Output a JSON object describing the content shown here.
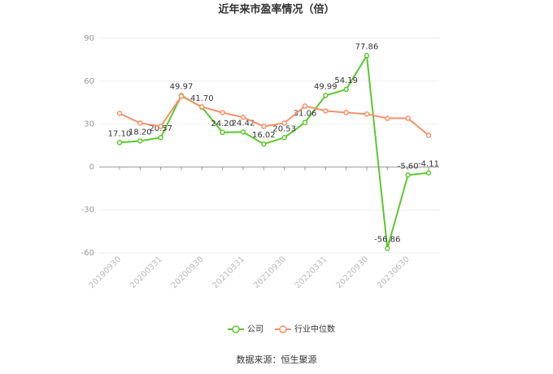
{
  "chart_data": {
    "type": "line",
    "title": "近年来市盈率情况（倍）",
    "source": "数据来源：恒生聚源",
    "categories": [
      "20190930",
      null,
      "20200331",
      null,
      "20200930",
      null,
      "20210331",
      null,
      "20210930",
      null,
      "20220331",
      null,
      "20220930",
      null,
      "20230630",
      null
    ],
    "series": [
      {
        "name": "公司",
        "color": "#5cc72e",
        "values": [
          17.1,
          18.2,
          20.57,
          49.97,
          41.7,
          24.2,
          24.42,
          16.02,
          20.53,
          31.06,
          49.99,
          54.19,
          77.86,
          -56.86,
          -5.6,
          -4.11
        ],
        "value_labels": [
          "17.10",
          "18.20",
          "20.57",
          "49.97",
          "41.70",
          "24.20",
          "24.42",
          "16.02",
          "20.53",
          "31.06",
          "49.99",
          "54.19",
          "77.86",
          "-56.86",
          "-5.60",
          "-4.11"
        ]
      },
      {
        "name": "行业中位数",
        "color": "#f4916a",
        "values": [
          37.5,
          30.7,
          28.4,
          49.5,
          42,
          38,
          34.7,
          28.4,
          30.7,
          42.6,
          39.2,
          38,
          37,
          34,
          34,
          22.2
        ]
      }
    ],
    "ylim": [
      -60,
      90
    ],
    "yticks": [
      90,
      60,
      30,
      0,
      -30,
      -60
    ],
    "grid": true,
    "legend": "bottom"
  }
}
